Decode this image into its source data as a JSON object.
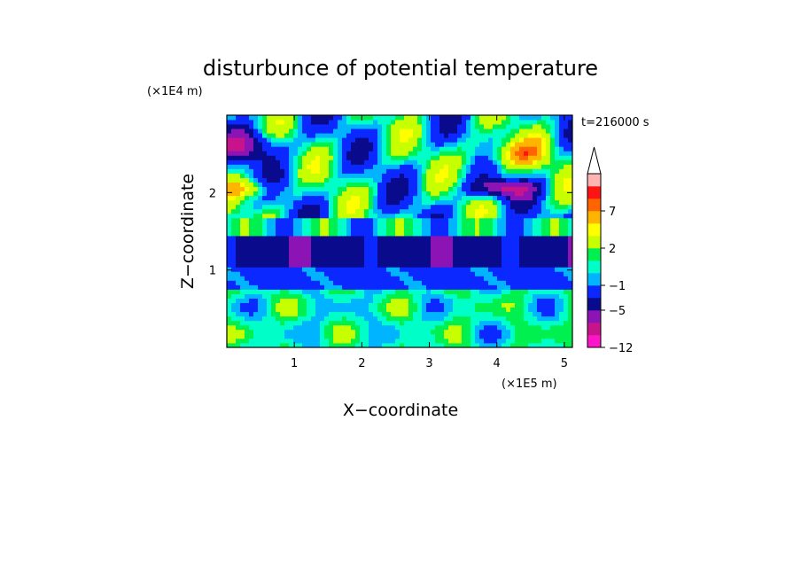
{
  "chart_data": {
    "type": "heatmap",
    "title": "disturbunce of potential temperature",
    "xlabel": "X−coordinate",
    "ylabel": "Z−coordinate",
    "x_unit": "(×1E5 m)",
    "y_unit": "(×1E4 m)",
    "time_label": "t=216000 s",
    "xlim": [
      0,
      5.12
    ],
    "ylim": [
      0,
      3.0
    ],
    "x_ticks": [
      {
        "value": 1,
        "label": "1"
      },
      {
        "value": 2,
        "label": "2"
      },
      {
        "value": 3,
        "label": "3"
      },
      {
        "value": 4,
        "label": "4"
      },
      {
        "value": 5,
        "label": "5"
      }
    ],
    "y_ticks": [
      {
        "value": 1,
        "label": "1"
      },
      {
        "value": 2,
        "label": "2"
      }
    ],
    "colorbar": {
      "levels": [
        -12,
        -9,
        -7,
        -5,
        -3,
        -1,
        0,
        1,
        2,
        4,
        5,
        7,
        8,
        10
      ],
      "colors": [
        "#ff14c8",
        "#c8148c",
        "#8c14b4",
        "#0a0a8c",
        "#0a28ff",
        "#00b4ff",
        "#00ffc8",
        "#00f050",
        "#c8ff00",
        "#ffff00",
        "#ffb400",
        "#ff6400",
        "#ff1414",
        "#ffb4b4"
      ],
      "overflow_color": "#ffffff",
      "labels": [
        {
          "value": -12,
          "label": "−12"
        },
        {
          "value": -5,
          "label": "−5"
        },
        {
          "value": -1,
          "label": "−1"
        },
        {
          "value": 2,
          "label": "2"
        },
        {
          "value": 7,
          "label": "7"
        }
      ]
    }
  }
}
